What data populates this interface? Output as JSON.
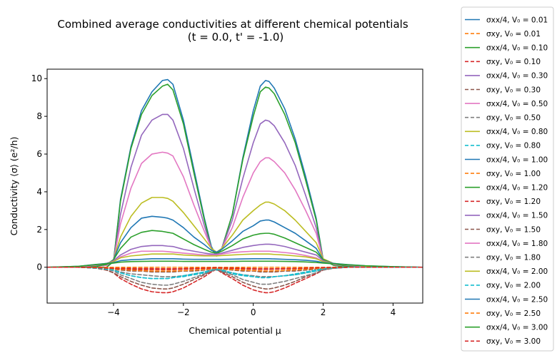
{
  "chart_data": {
    "type": "line",
    "title": "Combined average conductivities at different chemical potentials",
    "subtitle": "(t = 0.0, t' = -1.0)",
    "xlabel": "Chemical potential μ",
    "ylabel": "Conductivity ⟨σ⟩ (e²/h)",
    "xlim": [
      -5.9,
      4.85
    ],
    "ylim": [
      -1.9,
      10.5
    ],
    "xticks": [
      -4,
      -2,
      0,
      2,
      4
    ],
    "yticks": [
      0,
      2,
      4,
      6,
      8,
      10
    ],
    "xtick_labels": [
      "−4",
      "−2",
      "0",
      "2",
      "4"
    ],
    "ytick_labels": [
      "0",
      "2",
      "4",
      "6",
      "8",
      "10"
    ],
    "grid": false,
    "legend_position": "outside-right",
    "legend": [
      {
        "label": "σxx/4, V₀ = 0.01",
        "color": "#1f77b4",
        "dash": "solid"
      },
      {
        "label": "σxy, V₀ = 0.01",
        "color": "#ff7f0e",
        "dash": "dashed"
      },
      {
        "label": "σxx/4, V₀ = 0.10",
        "color": "#2ca02c",
        "dash": "solid"
      },
      {
        "label": "σxy, V₀ = 0.10",
        "color": "#d62728",
        "dash": "dashed"
      },
      {
        "label": "σxx/4, V₀ = 0.30",
        "color": "#9467bd",
        "dash": "solid"
      },
      {
        "label": "σxy, V₀ = 0.30",
        "color": "#8c564b",
        "dash": "dashed"
      },
      {
        "label": "σxx/4, V₀ = 0.50",
        "color": "#e377c2",
        "dash": "solid"
      },
      {
        "label": "σxy, V₀ = 0.50",
        "color": "#7f7f7f",
        "dash": "dashed"
      },
      {
        "label": "σxx/4, V₀ = 0.80",
        "color": "#bcbd22",
        "dash": "solid"
      },
      {
        "label": "σxy, V₀ = 0.80",
        "color": "#17becf",
        "dash": "dashed"
      },
      {
        "label": "σxx/4, V₀ = 1.00",
        "color": "#1f77b4",
        "dash": "solid"
      },
      {
        "label": "σxy, V₀ = 1.00",
        "color": "#ff7f0e",
        "dash": "dashed"
      },
      {
        "label": "σxx/4, V₀ = 1.20",
        "color": "#2ca02c",
        "dash": "solid"
      },
      {
        "label": "σxy, V₀ = 1.20",
        "color": "#d62728",
        "dash": "dashed"
      },
      {
        "label": "σxx/4, V₀ = 1.50",
        "color": "#9467bd",
        "dash": "solid"
      },
      {
        "label": "σxy, V₀ = 1.50",
        "color": "#8c564b",
        "dash": "dashed"
      },
      {
        "label": "σxx/4, V₀ = 1.80",
        "color": "#e377c2",
        "dash": "solid"
      },
      {
        "label": "σxy, V₀ = 1.80",
        "color": "#7f7f7f",
        "dash": "dashed"
      },
      {
        "label": "σxx/4, V₀ = 2.00",
        "color": "#bcbd22",
        "dash": "solid"
      },
      {
        "label": "σxy, V₀ = 2.00",
        "color": "#17becf",
        "dash": "dashed"
      },
      {
        "label": "σxx/4, V₀ = 2.50",
        "color": "#1f77b4",
        "dash": "solid"
      },
      {
        "label": "σxy, V₀ = 2.50",
        "color": "#ff7f0e",
        "dash": "dashed"
      },
      {
        "label": "σxx/4, V₀ = 3.00",
        "color": "#2ca02c",
        "dash": "solid"
      },
      {
        "label": "σxy, V₀ = 3.00",
        "color": "#d62728",
        "dash": "dashed"
      }
    ],
    "x": [
      -5.9,
      -5,
      -4.5,
      -4.2,
      -4.0,
      -3.8,
      -3.5,
      -3.2,
      -2.9,
      -2.6,
      -2.45,
      -2.3,
      -2.0,
      -1.7,
      -1.4,
      -1.2,
      -1.05,
      -0.9,
      -0.6,
      -0.3,
      0.0,
      0.2,
      0.35,
      0.45,
      0.6,
      0.9,
      1.2,
      1.5,
      1.8,
      2.0,
      2.3,
      2.7,
      3.2,
      4.0,
      4.85
    ],
    "series": [
      {
        "name": "σxx/4, V₀ = 0.01",
        "color": "#1f77b4",
        "dash": "solid",
        "values": [
          0,
          0,
          0,
          0,
          0.3,
          3.6,
          6.4,
          8.3,
          9.3,
          9.9,
          9.95,
          9.7,
          7.8,
          5.2,
          2.6,
          1.1,
          0.6,
          1.0,
          2.8,
          5.8,
          8.3,
          9.6,
          9.9,
          9.85,
          9.5,
          8.4,
          6.8,
          4.8,
          2.6,
          0.4,
          0.1,
          0,
          0,
          0,
          0
        ]
      },
      {
        "name": "σxy, V₀ = 0.01",
        "color": "#ff7f0e",
        "dash": "dashed",
        "values": [
          0,
          0,
          0,
          0,
          0,
          0,
          0,
          0,
          0,
          0,
          0,
          0,
          0,
          0,
          0,
          0,
          0,
          0,
          0,
          0,
          0,
          0,
          0,
          0,
          0,
          0,
          0,
          0,
          0,
          0,
          0,
          0,
          0,
          0,
          0
        ]
      },
      {
        "name": "σxx/4, V₀ = 0.10",
        "color": "#2ca02c",
        "dash": "solid",
        "values": [
          0,
          0,
          0,
          0,
          0.3,
          3.5,
          6.3,
          8.1,
          9.1,
          9.6,
          9.7,
          9.4,
          7.6,
          5.0,
          2.5,
          1.0,
          0.6,
          1.0,
          2.8,
          5.7,
          8.0,
          9.3,
          9.55,
          9.5,
          9.2,
          8.1,
          6.6,
          4.6,
          2.5,
          0.4,
          0.1,
          0,
          0,
          0,
          0
        ]
      },
      {
        "name": "σxy, V₀ = 0.10",
        "color": "#d62728",
        "dash": "dashed",
        "values": [
          0,
          0,
          0,
          -0.03,
          -0.05,
          -0.06,
          -0.06,
          -0.07,
          -0.07,
          -0.08,
          -0.08,
          -0.08,
          -0.07,
          -0.06,
          -0.05,
          -0.04,
          -0.03,
          -0.04,
          -0.05,
          -0.06,
          -0.07,
          -0.08,
          -0.08,
          -0.08,
          -0.08,
          -0.07,
          -0.07,
          -0.06,
          -0.05,
          -0.04,
          -0.02,
          0,
          0,
          0,
          0
        ]
      },
      {
        "name": "σxx/4, V₀ = 0.30",
        "color": "#9467bd",
        "dash": "solid",
        "values": [
          0,
          0,
          0.05,
          0.1,
          0.3,
          2.8,
          5.3,
          7.0,
          7.8,
          8.1,
          8.1,
          7.8,
          6.3,
          4.2,
          2.2,
          1.0,
          0.7,
          1.0,
          2.5,
          4.7,
          6.6,
          7.6,
          7.8,
          7.75,
          7.5,
          6.6,
          5.4,
          3.8,
          2.1,
          0.4,
          0.15,
          0.05,
          0,
          0,
          0
        ]
      },
      {
        "name": "σxy, V₀ = 0.30",
        "color": "#8c564b",
        "dash": "dashed",
        "values": [
          0,
          0,
          0,
          -0.05,
          -0.1,
          -0.15,
          -0.2,
          -0.2,
          -0.25,
          -0.25,
          -0.25,
          -0.25,
          -0.2,
          -0.2,
          -0.15,
          -0.1,
          -0.05,
          -0.1,
          -0.15,
          -0.2,
          -0.2,
          -0.25,
          -0.25,
          -0.25,
          -0.25,
          -0.2,
          -0.2,
          -0.15,
          -0.1,
          -0.05,
          -0.02,
          0,
          0,
          0,
          0
        ]
      },
      {
        "name": "σxx/4, V₀ = 0.50",
        "color": "#e377c2",
        "dash": "solid",
        "values": [
          0,
          0,
          0.05,
          0.1,
          0.35,
          2.3,
          4.2,
          5.5,
          6.0,
          6.1,
          6.05,
          5.9,
          4.8,
          3.3,
          1.9,
          1.0,
          0.75,
          1.0,
          2.1,
          3.7,
          5.0,
          5.6,
          5.8,
          5.8,
          5.6,
          5.0,
          4.1,
          3.0,
          1.8,
          0.4,
          0.15,
          0.05,
          0,
          0,
          0
        ]
      },
      {
        "name": "σxy, V₀ = 0.50",
        "color": "#7f7f7f",
        "dash": "dashed",
        "values": [
          0,
          0,
          0,
          -0.05,
          -0.15,
          -0.25,
          -0.35,
          -0.4,
          -0.45,
          -0.5,
          -0.5,
          -0.5,
          -0.45,
          -0.35,
          -0.25,
          -0.15,
          -0.1,
          -0.15,
          -0.3,
          -0.4,
          -0.45,
          -0.5,
          -0.5,
          -0.5,
          -0.5,
          -0.45,
          -0.4,
          -0.3,
          -0.2,
          -0.1,
          -0.05,
          0,
          0,
          0,
          0
        ]
      },
      {
        "name": "σxx/4, V₀ = 0.80",
        "color": "#bcbd22",
        "dash": "solid",
        "values": [
          0,
          0,
          0.05,
          0.15,
          0.4,
          1.6,
          2.7,
          3.4,
          3.7,
          3.7,
          3.65,
          3.5,
          2.9,
          2.2,
          1.5,
          1.0,
          0.8,
          1.0,
          1.7,
          2.5,
          3.0,
          3.3,
          3.45,
          3.45,
          3.35,
          3.0,
          2.5,
          1.9,
          1.3,
          0.45,
          0.2,
          0.05,
          0,
          0,
          0
        ]
      },
      {
        "name": "σxy, V₀ = 0.80",
        "color": "#17becf",
        "dash": "dashed",
        "values": [
          0,
          0,
          0,
          -0.05,
          -0.15,
          -0.3,
          -0.45,
          -0.55,
          -0.6,
          -0.6,
          -0.6,
          -0.55,
          -0.5,
          -0.4,
          -0.3,
          -0.2,
          -0.15,
          -0.2,
          -0.35,
          -0.45,
          -0.5,
          -0.55,
          -0.55,
          -0.55,
          -0.5,
          -0.45,
          -0.4,
          -0.3,
          -0.2,
          -0.1,
          -0.05,
          0,
          0,
          0,
          0
        ]
      },
      {
        "name": "σxx/4, V₀ = 1.00",
        "color": "#1f77b4",
        "dash": "solid",
        "values": [
          0,
          0,
          0.05,
          0.15,
          0.4,
          1.3,
          2.1,
          2.6,
          2.7,
          2.65,
          2.6,
          2.5,
          2.1,
          1.6,
          1.2,
          0.9,
          0.8,
          0.95,
          1.4,
          1.9,
          2.2,
          2.45,
          2.5,
          2.5,
          2.4,
          2.1,
          1.8,
          1.4,
          1.0,
          0.4,
          0.2,
          0.05,
          0,
          0,
          0
        ]
      },
      {
        "name": "σxy, V₀ = 1.00",
        "color": "#ff7f0e",
        "dash": "dashed",
        "values": [
          0,
          0,
          0,
          -0.02,
          -0.05,
          -0.08,
          -0.1,
          -0.12,
          -0.12,
          -0.12,
          -0.12,
          -0.12,
          -0.1,
          -0.08,
          -0.06,
          -0.05,
          -0.04,
          -0.05,
          -0.07,
          -0.09,
          -0.1,
          -0.11,
          -0.11,
          -0.11,
          -0.1,
          -0.09,
          -0.08,
          -0.06,
          -0.04,
          -0.02,
          -0.01,
          0,
          0,
          0,
          0
        ]
      },
      {
        "name": "σxx/4, V₀ = 1.20",
        "color": "#2ca02c",
        "dash": "solid",
        "values": [
          0,
          0,
          0.05,
          0.15,
          0.4,
          1.0,
          1.6,
          1.85,
          1.95,
          1.9,
          1.85,
          1.8,
          1.5,
          1.2,
          0.95,
          0.8,
          0.75,
          0.85,
          1.15,
          1.5,
          1.7,
          1.78,
          1.8,
          1.8,
          1.75,
          1.55,
          1.3,
          1.05,
          0.8,
          0.4,
          0.2,
          0.05,
          0,
          0,
          0
        ]
      },
      {
        "name": "σxy, V₀ = 1.20",
        "color": "#d62728",
        "dash": "dashed",
        "values": [
          0,
          0,
          -0.05,
          -0.15,
          -0.3,
          -0.6,
          -0.9,
          -1.15,
          -1.3,
          -1.35,
          -1.35,
          -1.3,
          -1.1,
          -0.8,
          -0.5,
          -0.25,
          -0.1,
          -0.3,
          -0.6,
          -0.95,
          -1.2,
          -1.3,
          -1.35,
          -1.35,
          -1.3,
          -1.1,
          -0.85,
          -0.6,
          -0.35,
          -0.15,
          -0.05,
          0,
          0,
          0,
          0
        ]
      },
      {
        "name": "σxx/4, V₀ = 1.50",
        "color": "#9467bd",
        "dash": "solid",
        "values": [
          0,
          0.02,
          0.1,
          0.2,
          0.35,
          0.65,
          0.95,
          1.1,
          1.15,
          1.15,
          1.12,
          1.1,
          0.95,
          0.85,
          0.75,
          0.7,
          0.7,
          0.75,
          0.9,
          1.05,
          1.15,
          1.2,
          1.22,
          1.22,
          1.2,
          1.1,
          0.95,
          0.8,
          0.65,
          0.35,
          0.2,
          0.1,
          0.03,
          0,
          0
        ]
      },
      {
        "name": "σxy, V₀ = 1.50",
        "color": "#8c564b",
        "dash": "dashed",
        "values": [
          0,
          0,
          -0.05,
          -0.15,
          -0.3,
          -0.5,
          -0.75,
          -0.95,
          -1.1,
          -1.15,
          -1.15,
          -1.1,
          -0.9,
          -0.65,
          -0.4,
          -0.2,
          -0.1,
          -0.25,
          -0.5,
          -0.8,
          -1.0,
          -1.1,
          -1.15,
          -1.15,
          -1.1,
          -0.95,
          -0.75,
          -0.5,
          -0.3,
          -0.12,
          -0.05,
          0,
          0,
          0,
          0
        ]
      },
      {
        "name": "σxx/4, V₀ = 1.80",
        "color": "#e377c2",
        "dash": "solid",
        "values": [
          0,
          0.03,
          0.12,
          0.2,
          0.3,
          0.55,
          0.75,
          0.85,
          0.85,
          0.85,
          0.83,
          0.8,
          0.75,
          0.7,
          0.65,
          0.65,
          0.65,
          0.7,
          0.78,
          0.82,
          0.85,
          0.85,
          0.85,
          0.85,
          0.83,
          0.78,
          0.72,
          0.62,
          0.5,
          0.3,
          0.2,
          0.12,
          0.05,
          0.01,
          0
        ]
      },
      {
        "name": "σxy, V₀ = 1.80",
        "color": "#7f7f7f",
        "dash": "dashed",
        "values": [
          0,
          0,
          -0.05,
          -0.1,
          -0.2,
          -0.4,
          -0.6,
          -0.8,
          -0.9,
          -0.95,
          -0.95,
          -0.9,
          -0.75,
          -0.55,
          -0.35,
          -0.2,
          -0.1,
          -0.2,
          -0.4,
          -0.65,
          -0.8,
          -0.9,
          -0.9,
          -0.9,
          -0.85,
          -0.75,
          -0.6,
          -0.45,
          -0.3,
          -0.15,
          -0.05,
          0,
          0,
          0,
          0
        ]
      },
      {
        "name": "σxx/4, V₀ = 2.00",
        "color": "#bcbd22",
        "dash": "solid",
        "values": [
          0,
          0.04,
          0.14,
          0.2,
          0.3,
          0.5,
          0.6,
          0.65,
          0.7,
          0.7,
          0.7,
          0.7,
          0.65,
          0.62,
          0.6,
          0.6,
          0.6,
          0.62,
          0.65,
          0.68,
          0.7,
          0.7,
          0.7,
          0.7,
          0.68,
          0.65,
          0.6,
          0.55,
          0.45,
          0.3,
          0.2,
          0.13,
          0.06,
          0.02,
          0
        ]
      },
      {
        "name": "σxy, V₀ = 2.00",
        "color": "#17becf",
        "dash": "dashed",
        "values": [
          0,
          0,
          -0.05,
          -0.1,
          -0.15,
          -0.3,
          -0.45,
          -0.55,
          -0.6,
          -0.6,
          -0.6,
          -0.55,
          -0.45,
          -0.35,
          -0.25,
          -0.15,
          -0.1,
          -0.15,
          -0.3,
          -0.4,
          -0.5,
          -0.55,
          -0.55,
          -0.55,
          -0.5,
          -0.45,
          -0.35,
          -0.25,
          -0.15,
          -0.08,
          -0.03,
          0,
          0,
          0,
          0
        ]
      },
      {
        "name": "σxx/4, V₀ = 2.50",
        "color": "#1f77b4",
        "dash": "solid",
        "values": [
          0,
          0.05,
          0.15,
          0.2,
          0.25,
          0.35,
          0.4,
          0.42,
          0.45,
          0.45,
          0.45,
          0.45,
          0.43,
          0.42,
          0.42,
          0.42,
          0.42,
          0.42,
          0.43,
          0.44,
          0.45,
          0.45,
          0.45,
          0.45,
          0.44,
          0.42,
          0.4,
          0.37,
          0.32,
          0.25,
          0.2,
          0.14,
          0.08,
          0.03,
          0
        ]
      },
      {
        "name": "σxy, V₀ = 2.50",
        "color": "#ff7f0e",
        "dash": "dashed",
        "values": [
          0,
          0,
          -0.02,
          -0.05,
          -0.08,
          -0.12,
          -0.15,
          -0.18,
          -0.2,
          -0.2,
          -0.2,
          -0.2,
          -0.18,
          -0.15,
          -0.12,
          -0.08,
          -0.06,
          -0.08,
          -0.12,
          -0.15,
          -0.18,
          -0.19,
          -0.2,
          -0.2,
          -0.19,
          -0.17,
          -0.14,
          -0.1,
          -0.07,
          -0.04,
          -0.02,
          0,
          0,
          0,
          0
        ]
      },
      {
        "name": "σxx/4, V₀ = 3.00",
        "color": "#2ca02c",
        "dash": "solid",
        "values": [
          0,
          0.05,
          0.14,
          0.18,
          0.22,
          0.27,
          0.3,
          0.31,
          0.32,
          0.32,
          0.32,
          0.32,
          0.31,
          0.31,
          0.31,
          0.31,
          0.31,
          0.31,
          0.31,
          0.32,
          0.32,
          0.32,
          0.32,
          0.32,
          0.32,
          0.31,
          0.3,
          0.28,
          0.25,
          0.22,
          0.18,
          0.13,
          0.08,
          0.03,
          0
        ]
      },
      {
        "name": "σxy, V₀ = 3.00",
        "color": "#d62728",
        "dash": "dashed",
        "values": [
          0,
          0,
          -0.02,
          -0.04,
          -0.06,
          -0.08,
          -0.1,
          -0.12,
          -0.12,
          -0.12,
          -0.12,
          -0.12,
          -0.1,
          -0.08,
          -0.06,
          -0.04,
          -0.03,
          -0.04,
          -0.06,
          -0.08,
          -0.1,
          -0.11,
          -0.11,
          -0.11,
          -0.1,
          -0.09,
          -0.07,
          -0.05,
          -0.03,
          -0.02,
          -0.01,
          0,
          0,
          0,
          0
        ]
      }
    ]
  }
}
